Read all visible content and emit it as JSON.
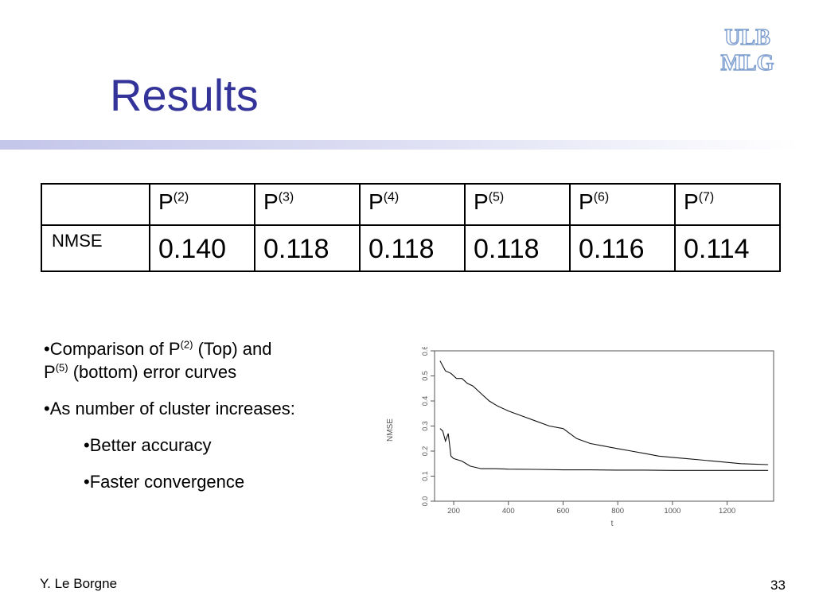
{
  "slide": {
    "title": "Results",
    "logo_text_top": "ULB",
    "logo_text_bottom": "MLG",
    "footer_author": "Y. Le Borgne",
    "page_number": "33"
  },
  "table": {
    "headers": [
      {
        "base": "P",
        "sup": "(2)"
      },
      {
        "base": "P",
        "sup": "(3)"
      },
      {
        "base": "P",
        "sup": "(4)"
      },
      {
        "base": "P",
        "sup": "(5)"
      },
      {
        "base": "P",
        "sup": "(6)"
      },
      {
        "base": "P",
        "sup": "(7)"
      }
    ],
    "row_label": "NMSE",
    "values": [
      "0.140",
      "0.118",
      "0.118",
      "0.118",
      "0.116",
      "0.114"
    ]
  },
  "bullets": {
    "b1_pre": "•Comparison of P",
    "b1_sup1": "(2)",
    "b1_mid": " (Top) and",
    "b1_p": "P",
    "b1_sup2": "(5)",
    "b1_post": " (bottom) error curves",
    "b2": "•As number of cluster increases:",
    "b3": "•Better accuracy",
    "b4": "•Faster convergence"
  },
  "chart_data": {
    "type": "line",
    "xlabel": "t",
    "ylabel": "NMSE",
    "xlim": [
      130,
      1370
    ],
    "ylim": [
      0,
      0.6
    ],
    "xticks": [
      "200",
      "400",
      "600",
      "800",
      "1000",
      "1200"
    ],
    "yticks": [
      "0.0",
      "0.1",
      "0.2",
      "0.3",
      "0.4",
      "0.5",
      "0.6"
    ],
    "grid": false,
    "series": [
      {
        "x": [
          150,
          170,
          190,
          210,
          230,
          250,
          270,
          300,
          330,
          360,
          400,
          450,
          500,
          550,
          600,
          650,
          700,
          750,
          800,
          850,
          900,
          950,
          1000,
          1050,
          1100,
          1150,
          1200,
          1250,
          1300,
          1350
        ],
        "y": [
          0.56,
          0.52,
          0.51,
          0.49,
          0.49,
          0.47,
          0.46,
          0.43,
          0.4,
          0.38,
          0.36,
          0.34,
          0.32,
          0.3,
          0.29,
          0.25,
          0.23,
          0.22,
          0.21,
          0.2,
          0.19,
          0.18,
          0.175,
          0.17,
          0.165,
          0.16,
          0.155,
          0.15,
          0.148,
          0.146
        ]
      },
      {
        "x": [
          150,
          160,
          170,
          180,
          190,
          200,
          230,
          260,
          300,
          350,
          400,
          500,
          600,
          700,
          800,
          900,
          1000,
          1100,
          1200,
          1300,
          1350
        ],
        "y": [
          0.29,
          0.28,
          0.24,
          0.27,
          0.18,
          0.17,
          0.16,
          0.14,
          0.13,
          0.13,
          0.128,
          0.127,
          0.125,
          0.125,
          0.124,
          0.124,
          0.123,
          0.123,
          0.123,
          0.123,
          0.123
        ]
      }
    ]
  }
}
